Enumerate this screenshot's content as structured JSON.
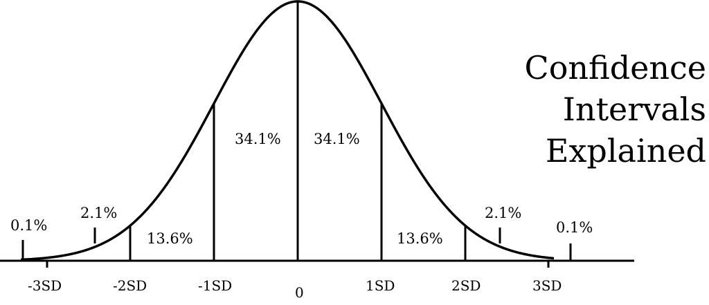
{
  "title": {
    "line1": "Confidence",
    "line2": "Intervals",
    "line3": "Explained"
  },
  "regions": {
    "left_tail": "0.1%",
    "left_outer": "2.1%",
    "left_mid": "13.6%",
    "left_inner": "34.1%",
    "right_inner": "34.1%",
    "right_mid": "13.6%",
    "right_outer": "2.1%",
    "right_tail": "0.1%"
  },
  "axis_labels": {
    "neg3": "-3SD",
    "neg2": "-2SD",
    "neg1": "-1SD",
    "zero": "0",
    "pos1": "1SD",
    "pos2": "2SD",
    "pos3": "3SD"
  },
  "colors": {
    "ink": "#000000",
    "background": "#ffffff"
  }
}
